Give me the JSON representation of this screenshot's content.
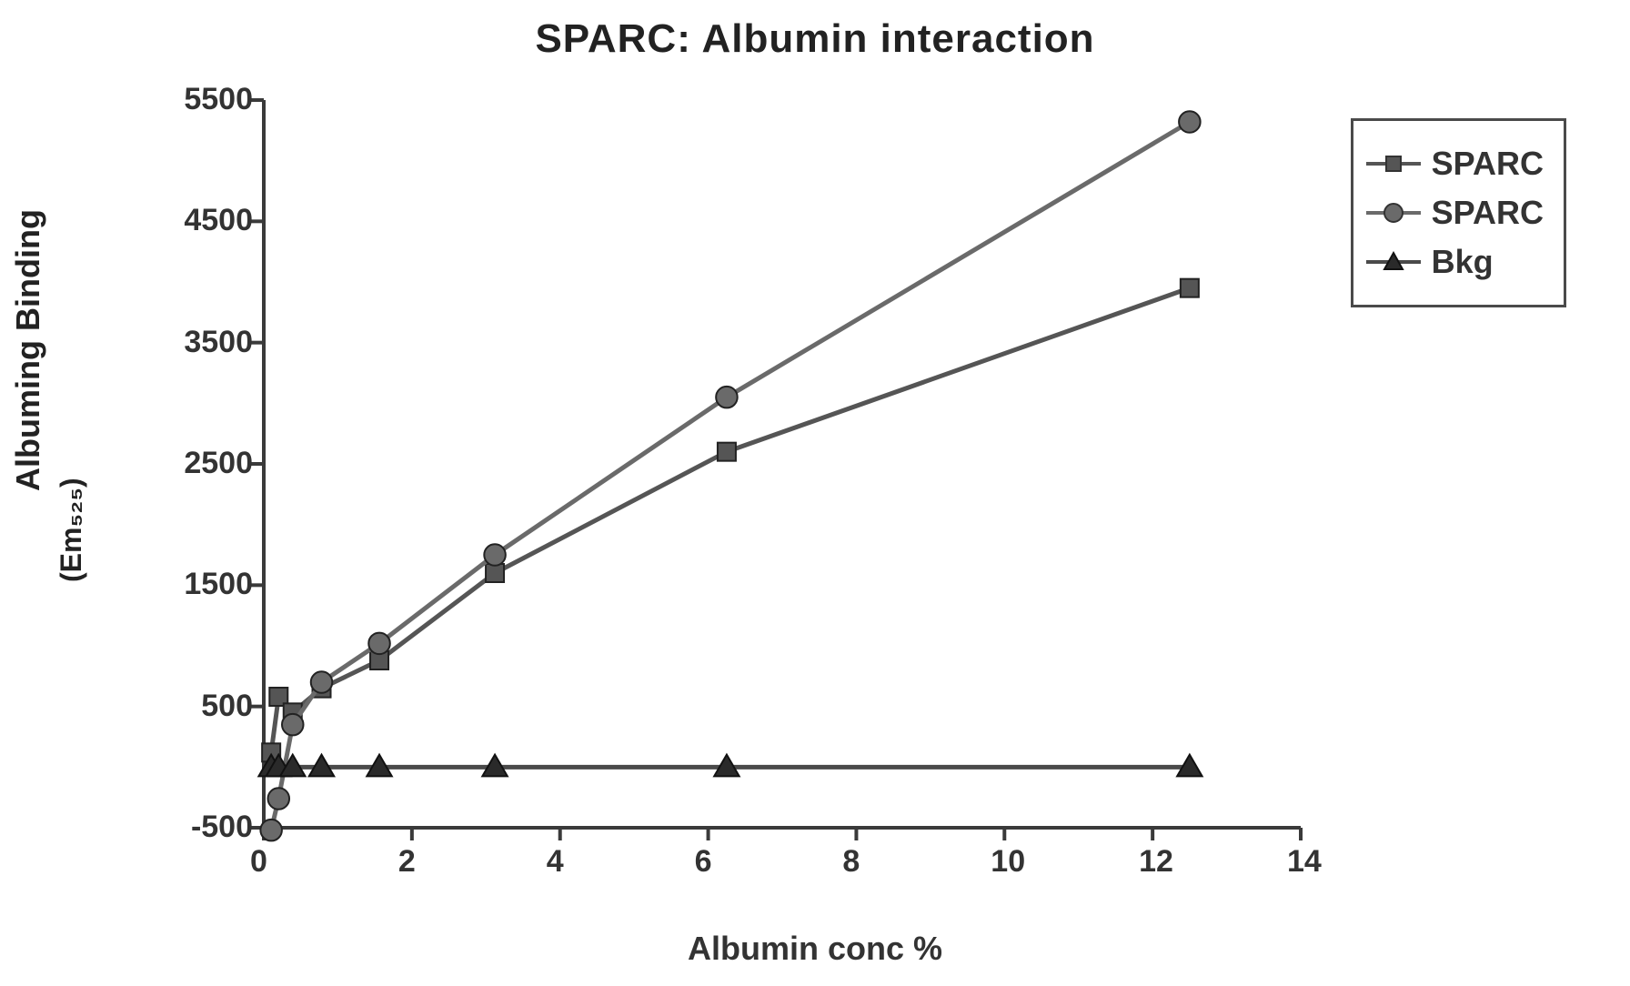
{
  "chart": {
    "type": "line-scatter",
    "title": "SPARC: Albumin interaction",
    "title_fontsize": 44,
    "xlabel": "Albumin conc %",
    "ylabel": "Albuming Binding",
    "ylabel_sub": "(Em₅₂₅)",
    "label_fontsize": 36,
    "background_color": "#ffffff",
    "axis_color": "#3a3a3a",
    "axis_width": 4,
    "tick_length": 14,
    "xlim": [
      0,
      14
    ],
    "ylim": [
      -500,
      5500
    ],
    "xticks": [
      0,
      2,
      4,
      6,
      8,
      10,
      12,
      14
    ],
    "yticks": [
      -500,
      500,
      1500,
      2500,
      3500,
      4500,
      5500
    ],
    "tick_fontsize": 34,
    "line_width": 5,
    "marker_size": 20,
    "series": [
      {
        "name": "SPARC",
        "marker": "square",
        "color": "#555555",
        "line_color": "#555555",
        "x": [
          0.1,
          0.2,
          0.39,
          0.78,
          1.56,
          3.12,
          6.25,
          12.5
        ],
        "y": [
          120,
          580,
          450,
          650,
          880,
          1600,
          2600,
          3950
        ]
      },
      {
        "name": "SPARC",
        "marker": "circle",
        "color": "#6a6a6a",
        "line_color": "#6a6a6a",
        "x": [
          0.1,
          0.2,
          0.39,
          0.78,
          1.56,
          3.12,
          6.25,
          12.5
        ],
        "y": [
          -520,
          -260,
          350,
          700,
          1020,
          1750,
          3050,
          5320
        ]
      },
      {
        "name": "Bkg",
        "marker": "triangle",
        "color": "#2a2a2a",
        "line_color": "#4a4a4a",
        "x": [
          0.1,
          0.2,
          0.39,
          0.78,
          1.56,
          3.12,
          6.25,
          12.5
        ],
        "y": [
          0,
          0,
          0,
          0,
          0,
          0,
          0,
          0
        ]
      }
    ],
    "legend": {
      "border_color": "#4a4a4a",
      "border_width": 3,
      "background": "#ffffff",
      "items": [
        {
          "label": "SPARC",
          "marker": "square",
          "color": "#555555"
        },
        {
          "label": "SPARC",
          "marker": "circle",
          "color": "#6a6a6a"
        },
        {
          "label": "Bkg",
          "marker": "triangle",
          "color": "#2a2a2a"
        }
      ]
    }
  }
}
